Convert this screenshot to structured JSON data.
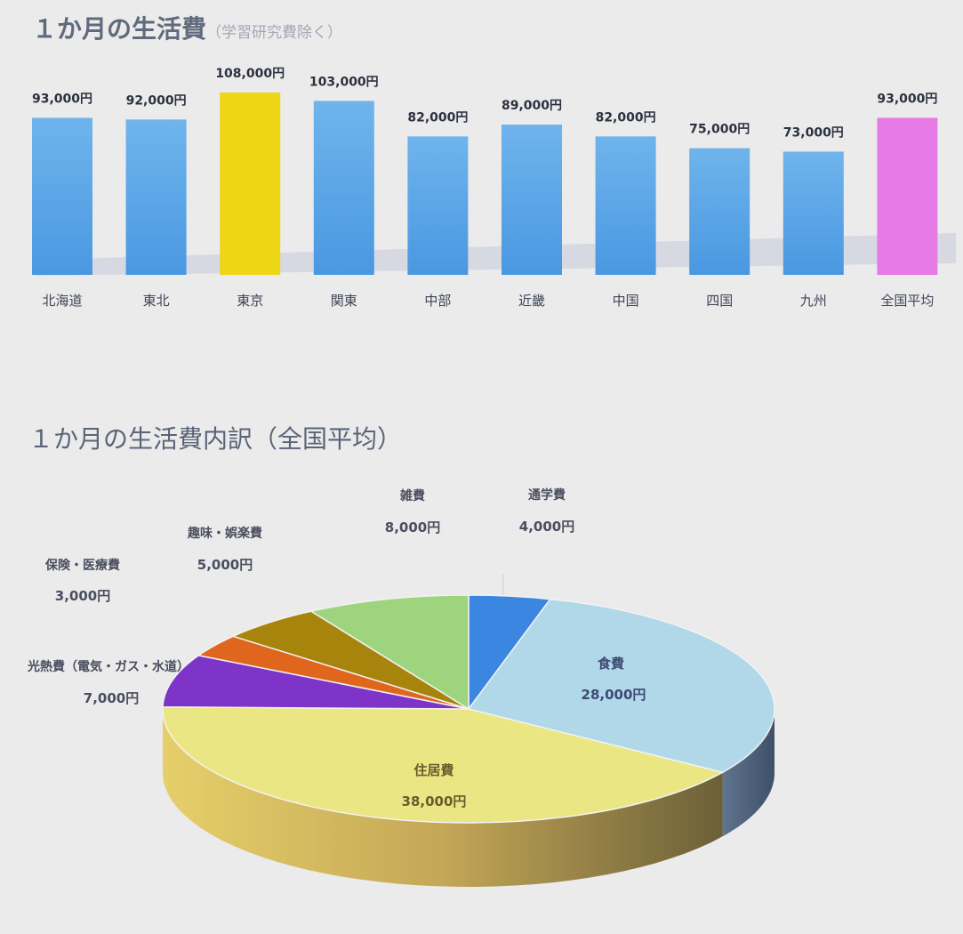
{
  "title1": {
    "main": "１か月の生活費",
    "sub": "（学習研究費除く）"
  },
  "title2": "１か月の生活費内訳（全国平均）",
  "chart_data": [
    {
      "type": "bar",
      "categories": [
        "北海道",
        "東北",
        "東京",
        "関東",
        "中部",
        "近畿",
        "中国",
        "四国",
        "九州",
        "全国平均"
      ],
      "values": [
        93000,
        92000,
        108000,
        103000,
        82000,
        89000,
        82000,
        75000,
        73000,
        93000
      ],
      "value_labels": [
        "93,000円",
        "92,000円",
        "108,000円",
        "103,000円",
        "82,000円",
        "89,000円",
        "82,000円",
        "75,000円",
        "73,000円",
        "93,000円"
      ],
      "colors": [
        "#5aa8e6",
        "#5aa8e6",
        "#ecd616",
        "#5aa8e6",
        "#5aa8e6",
        "#5aa8e6",
        "#5aa8e6",
        "#5aa8e6",
        "#5aa8e6",
        "#e67ae6"
      ],
      "title": "１か月の生活費（学習研究費除く）"
    },
    {
      "type": "pie",
      "title": "１か月の生活費内訳（全国平均）",
      "slices": [
        {
          "label": "通学費",
          "value": 4000,
          "value_label": "4,000円",
          "color": "#3a86e0"
        },
        {
          "label": "食費",
          "value": 28000,
          "value_label": "28,000円",
          "color": "#b0d8e8"
        },
        {
          "label": "住居費",
          "value": 38000,
          "value_label": "38,000円",
          "color": "#ebe684"
        },
        {
          "label": "光熱費（電気・ガス・水道）",
          "value": 7000,
          "value_label": "7,000円",
          "color": "#7e34c9"
        },
        {
          "label": "保険・医療費",
          "value": 3000,
          "value_label": "3,000円",
          "color": "#df661c"
        },
        {
          "label": "趣味・娯楽費",
          "value": 5000,
          "value_label": "5,000円",
          "color": "#a7840c"
        },
        {
          "label": "雑費",
          "value": 8000,
          "value_label": "8,000円",
          "color": "#9ed47e"
        }
      ]
    }
  ]
}
